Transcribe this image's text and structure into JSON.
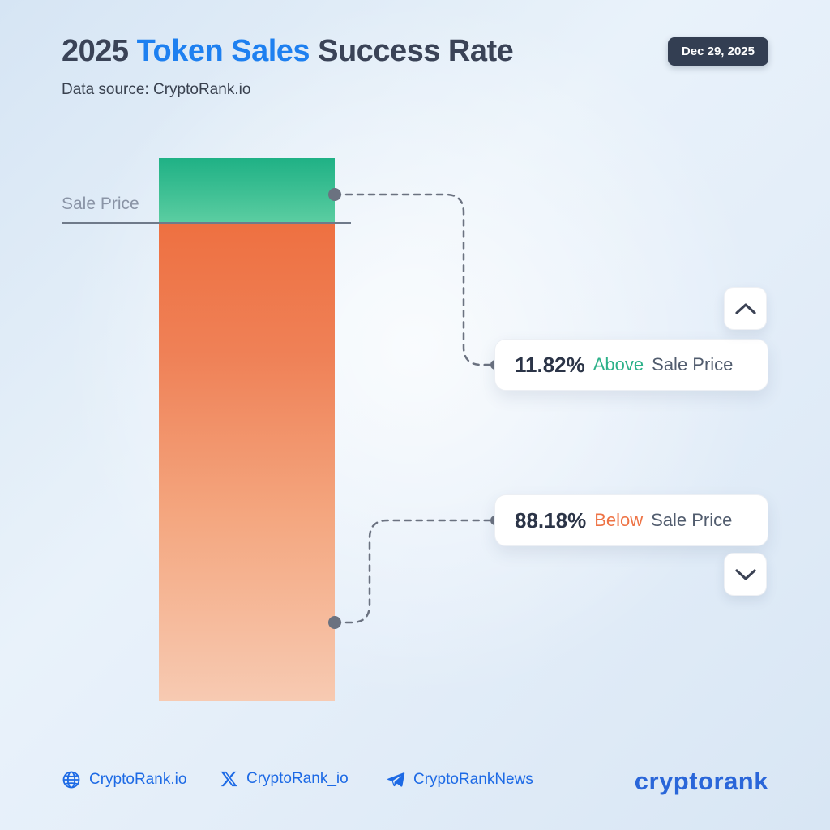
{
  "header": {
    "title_part1": "2025",
    "title_accent": "Token Sales",
    "title_part3": "Success Rate",
    "date_badge": "Dec 29, 2025",
    "data_source": "Data source: CryptoRank.io"
  },
  "chart": {
    "sale_price_label": "Sale Price"
  },
  "chart_data": {
    "type": "bar",
    "title": "2025 Token Sales Success Rate",
    "subtitle": "Data source: CryptoRank.io",
    "categories": [
      "Above Sale Price",
      "Below Sale Price"
    ],
    "values": [
      11.82,
      88.18
    ],
    "unit": "%",
    "colors": {
      "above": "#22b388",
      "below": "#ee7345"
    },
    "annotations": [
      "Sale Price"
    ],
    "legend_position": "none",
    "grid": false
  },
  "callouts": {
    "above": {
      "value": "11.82%",
      "direction": "Above",
      "label": "Sale Price"
    },
    "below": {
      "value": "88.18%",
      "direction": "Below",
      "label": "Sale Price"
    }
  },
  "footer": {
    "links": [
      {
        "icon": "globe-icon",
        "label": "CryptoRank.io"
      },
      {
        "icon": "x-icon",
        "label": "CryptoRank_io"
      },
      {
        "icon": "telegram-icon",
        "label": "CryptoRankNews"
      }
    ],
    "logo": "cryptorank"
  }
}
